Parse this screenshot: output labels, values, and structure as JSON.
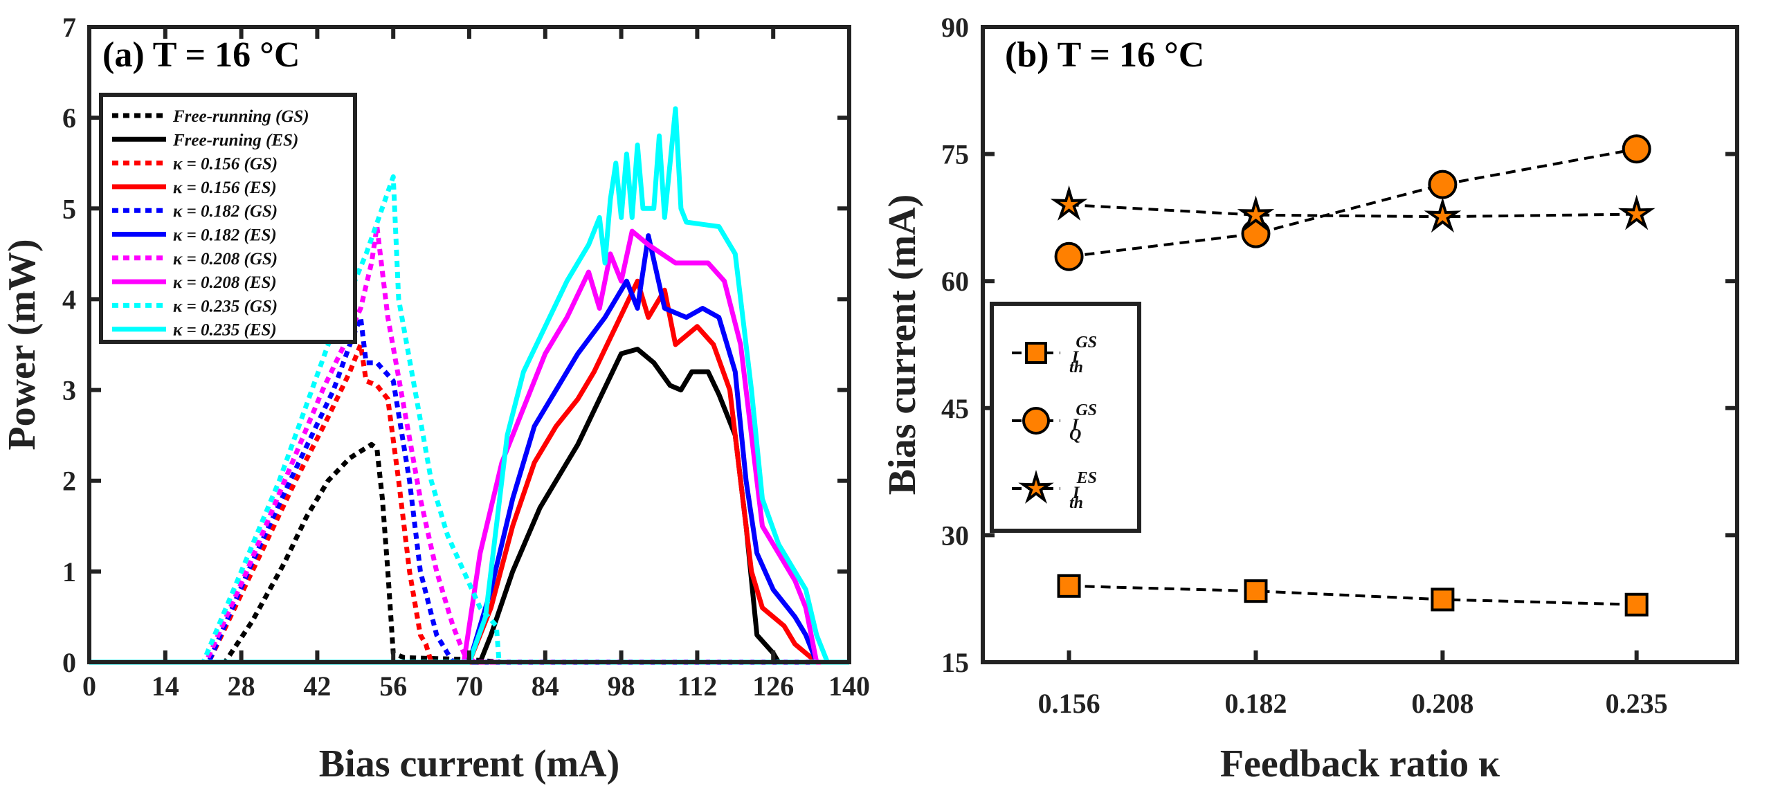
{
  "chart_data": [
    {
      "type": "line",
      "panel_label": "(a) T = 16 °C",
      "xlabel": "Bias current (mA)",
      "ylabel": "Power (mW)",
      "xlim": [
        0,
        140
      ],
      "ylim": [
        0,
        7
      ],
      "xticks": [
        "0",
        "14",
        "28",
        "42",
        "56",
        "70",
        "84",
        "98",
        "112",
        "126",
        "140"
      ],
      "yticks": [
        "0",
        "1",
        "2",
        "3",
        "4",
        "5",
        "6",
        "7"
      ],
      "legend_position": "top-left",
      "series": [
        {
          "name": "Free-running (GS)",
          "color": "#000000",
          "style": "dotted",
          "points": [
            [
              0,
              0
            ],
            [
              25,
              0
            ],
            [
              30,
              0.45
            ],
            [
              36,
              1.1
            ],
            [
              40,
              1.6
            ],
            [
              44,
              2.0
            ],
            [
              48,
              2.25
            ],
            [
              52,
              2.4
            ],
            [
              53,
              2.35
            ],
            [
              54,
              1.8
            ],
            [
              55,
              1.0
            ],
            [
              56,
              0.1
            ],
            [
              58,
              0.05
            ],
            [
              70,
              0.03
            ],
            [
              76,
              0
            ],
            [
              140,
              0
            ]
          ]
        },
        {
          "name": "Free-runing (ES)",
          "color": "#000000",
          "style": "solid",
          "points": [
            [
              0,
              0
            ],
            [
              72,
              0
            ],
            [
              74,
              0.3
            ],
            [
              78,
              1.0
            ],
            [
              83,
              1.7
            ],
            [
              88,
              2.2
            ],
            [
              90,
              2.4
            ],
            [
              94,
              2.9
            ],
            [
              98,
              3.4
            ],
            [
              101,
              3.45
            ],
            [
              104,
              3.3
            ],
            [
              107,
              3.05
            ],
            [
              109,
              3.0
            ],
            [
              111,
              3.2
            ],
            [
              114,
              3.2
            ],
            [
              116,
              2.95
            ],
            [
              119,
              2.5
            ],
            [
              121,
              1.5
            ],
            [
              123,
              0.3
            ],
            [
              126,
              0.1
            ],
            [
              127,
              0
            ],
            [
              140,
              0
            ]
          ]
        },
        {
          "name": "κ = 0.156 (GS)",
          "color": "#FF0000",
          "style": "dotted",
          "points": [
            [
              0,
              0
            ],
            [
              22,
              0
            ],
            [
              30,
              1.0
            ],
            [
              38,
              2.0
            ],
            [
              44,
              2.7
            ],
            [
              48,
              3.2
            ],
            [
              50,
              3.5
            ],
            [
              51,
              3.1
            ],
            [
              53,
              3.05
            ],
            [
              55,
              2.9
            ],
            [
              57,
              2.0
            ],
            [
              59,
              1.0
            ],
            [
              61,
              0.3
            ],
            [
              62,
              0.2
            ],
            [
              63,
              0
            ],
            [
              140,
              0
            ]
          ]
        },
        {
          "name": "κ = 0.156 (ES)",
          "color": "#FF0000",
          "style": "solid",
          "points": [
            [
              0,
              0
            ],
            [
              70,
              0
            ],
            [
              74,
              0.6
            ],
            [
              78,
              1.5
            ],
            [
              82,
              2.2
            ],
            [
              86,
              2.6
            ],
            [
              90,
              2.9
            ],
            [
              93,
              3.2
            ],
            [
              97,
              3.7
            ],
            [
              101,
              4.2
            ],
            [
              103,
              3.8
            ],
            [
              106,
              4.1
            ],
            [
              108,
              3.5
            ],
            [
              112,
              3.7
            ],
            [
              115,
              3.5
            ],
            [
              118,
              3.0
            ],
            [
              120,
              2.0
            ],
            [
              122,
              1.0
            ],
            [
              124,
              0.6
            ],
            [
              128,
              0.4
            ],
            [
              130,
              0.2
            ],
            [
              132,
              0.1
            ],
            [
              134,
              0
            ],
            [
              140,
              0
            ]
          ]
        },
        {
          "name": "κ = 0.182 (GS)",
          "color": "#0000FF",
          "style": "dotted",
          "points": [
            [
              0,
              0
            ],
            [
              22,
              0
            ],
            [
              30,
              1.1
            ],
            [
              37,
              2.0
            ],
            [
              45,
              3.0
            ],
            [
              48,
              3.5
            ],
            [
              50,
              3.8
            ],
            [
              51,
              3.3
            ],
            [
              53,
              3.3
            ],
            [
              56,
              3.1
            ],
            [
              59,
              2.0
            ],
            [
              61,
              1.0
            ],
            [
              64,
              0.3
            ],
            [
              66,
              0.1
            ],
            [
              67,
              0
            ],
            [
              140,
              0
            ]
          ]
        },
        {
          "name": "κ = 0.182 (ES)",
          "color": "#0000FF",
          "style": "solid",
          "points": [
            [
              0,
              0
            ],
            [
              70,
              0
            ],
            [
              74,
              0.8
            ],
            [
              78,
              1.8
            ],
            [
              82,
              2.6
            ],
            [
              86,
              3.0
            ],
            [
              90,
              3.4
            ],
            [
              95,
              3.8
            ],
            [
              99,
              4.2
            ],
            [
              101,
              3.9
            ],
            [
              103,
              4.7
            ],
            [
              106,
              3.9
            ],
            [
              110,
              3.8
            ],
            [
              113,
              3.9
            ],
            [
              116,
              3.8
            ],
            [
              119,
              3.2
            ],
            [
              121,
              2.0
            ],
            [
              123,
              1.2
            ],
            [
              126,
              0.8
            ],
            [
              130,
              0.5
            ],
            [
              132,
              0.3
            ],
            [
              134,
              0
            ],
            [
              140,
              0
            ]
          ]
        },
        {
          "name": "κ = 0.208 (GS)",
          "color": "#FF00FF",
          "style": "dotted",
          "points": [
            [
              0,
              0
            ],
            [
              21.5,
              0
            ],
            [
              29,
              1.0
            ],
            [
              36,
              2.0
            ],
            [
              43,
              3.0
            ],
            [
              47,
              3.5
            ],
            [
              50,
              3.9
            ],
            [
              52,
              4.4
            ],
            [
              53,
              4.8
            ],
            [
              55,
              3.8
            ],
            [
              58,
              2.8
            ],
            [
              61,
              1.8
            ],
            [
              64,
              1.0
            ],
            [
              67,
              0.4
            ],
            [
              69,
              0.1
            ],
            [
              71,
              0
            ],
            [
              140,
              0
            ]
          ]
        },
        {
          "name": "κ = 0.208 (ES)",
          "color": "#FF00FF",
          "style": "solid",
          "points": [
            [
              0,
              0
            ],
            [
              69,
              0
            ],
            [
              72,
              1.2
            ],
            [
              76,
              2.2
            ],
            [
              80,
              2.8
            ],
            [
              84,
              3.4
            ],
            [
              88,
              3.8
            ],
            [
              92,
              4.3
            ],
            [
              94,
              3.9
            ],
            [
              96,
              4.5
            ],
            [
              98,
              4.2
            ],
            [
              100,
              4.75
            ],
            [
              103,
              4.6
            ],
            [
              108,
              4.4
            ],
            [
              114,
              4.4
            ],
            [
              117,
              4.2
            ],
            [
              120,
              3.5
            ],
            [
              122,
              2.5
            ],
            [
              124,
              1.5
            ],
            [
              127,
              1.2
            ],
            [
              130,
              0.9
            ],
            [
              132,
              0.6
            ],
            [
              134,
              0
            ],
            [
              140,
              0
            ]
          ]
        },
        {
          "name": "κ = 0.235 (GS)",
          "color": "#00FFFF",
          "style": "dotted",
          "points": [
            [
              0,
              0
            ],
            [
              21,
              0
            ],
            [
              28,
              1.0
            ],
            [
              35,
              2.0
            ],
            [
              44,
              3.5
            ],
            [
              51,
              4.5
            ],
            [
              56,
              5.35
            ],
            [
              57,
              4.0
            ],
            [
              60,
              3.0
            ],
            [
              63,
              2.0
            ],
            [
              66,
              1.4
            ],
            [
              69,
              1.0
            ],
            [
              72,
              0.6
            ],
            [
              75,
              0.4
            ],
            [
              75.5,
              0
            ],
            [
              140,
              0
            ]
          ]
        },
        {
          "name": "κ = 0.235 (ES)",
          "color": "#00FFFF",
          "style": "solid",
          "points": [
            [
              0,
              0
            ],
            [
              70,
              0
            ],
            [
              73,
              0.5
            ],
            [
              75,
              1.5
            ],
            [
              77,
              2.5
            ],
            [
              80,
              3.2
            ],
            [
              84,
              3.7
            ],
            [
              88,
              4.2
            ],
            [
              92,
              4.6
            ],
            [
              94,
              4.9
            ],
            [
              95,
              4.4
            ],
            [
              96,
              5.1
            ],
            [
              97,
              5.5
            ],
            [
              98,
              4.9
            ],
            [
              99,
              5.6
            ],
            [
              100,
              4.9
            ],
            [
              101,
              5.7
            ],
            [
              102,
              5.0
            ],
            [
              104,
              5.0
            ],
            [
              105,
              5.8
            ],
            [
              106,
              4.9
            ],
            [
              107,
              5.5
            ],
            [
              108,
              6.1
            ],
            [
              109,
              5.0
            ],
            [
              110,
              4.85
            ],
            [
              116,
              4.8
            ],
            [
              119,
              4.5
            ],
            [
              122,
              3.0
            ],
            [
              124,
              1.8
            ],
            [
              127,
              1.3
            ],
            [
              130,
              1.0
            ],
            [
              132,
              0.8
            ],
            [
              134,
              0.3
            ],
            [
              136,
              0
            ],
            [
              140,
              0
            ]
          ]
        }
      ]
    },
    {
      "type": "line",
      "panel_label": "(b) T = 16 °C",
      "xlabel": "Feedback ratio κ",
      "ylabel": "Bias current (mA)",
      "xlim": [
        0.144,
        0.249
      ],
      "ylim": [
        15,
        90
      ],
      "xticks": [
        "0.156",
        "0.182",
        "0.208",
        "0.235"
      ],
      "yticks": [
        "15",
        "30",
        "45",
        "60",
        "75",
        "90"
      ],
      "legend_position": "middle-left",
      "x": [
        0.156,
        0.182,
        0.208,
        0.235
      ],
      "marker_color": "#FF8000",
      "series": [
        {
          "name": "I_th^GS",
          "base": "I",
          "sub": "th",
          "sup": "GS",
          "marker": "square",
          "values": [
            24.0,
            23.4,
            22.4,
            21.8
          ]
        },
        {
          "name": "I_Q^GS",
          "base": "I",
          "sub": "Q",
          "sup": "GS",
          "marker": "circle",
          "values": [
            62.9,
            65.6,
            71.4,
            75.6
          ]
        },
        {
          "name": "I_th^ES",
          "base": "I",
          "sub": "th",
          "sup": "ES",
          "marker": "star",
          "values": [
            69.0,
            67.8,
            67.6,
            67.9
          ]
        }
      ]
    }
  ]
}
